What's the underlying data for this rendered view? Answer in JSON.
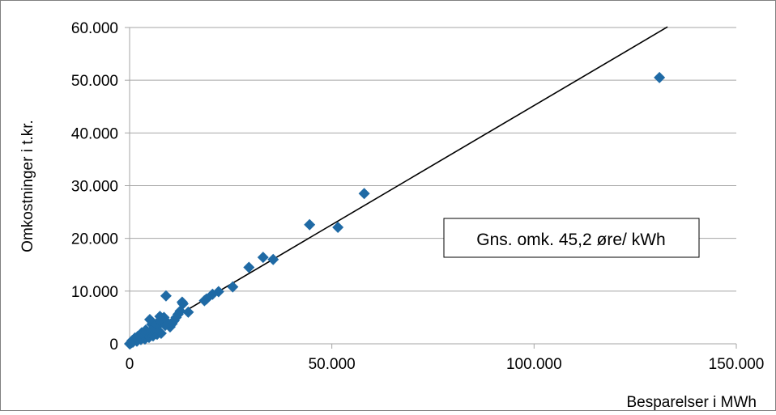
{
  "chart_data": {
    "type": "scatter",
    "title": "",
    "xlabel": "Besparelser i MWh",
    "ylabel": "Omkostninger i t.kr.",
    "xlim": [
      0,
      150000
    ],
    "ylim": [
      0,
      60000
    ],
    "x_ticks": [
      0,
      50000,
      100000,
      150000
    ],
    "x_tick_labels": [
      "0",
      "50.000",
      "100.000",
      "150.000"
    ],
    "y_ticks": [
      0,
      10000,
      20000,
      30000,
      40000,
      50000,
      60000
    ],
    "y_tick_labels": [
      "0",
      "10.000",
      "20.000",
      "30.000",
      "40.000",
      "50.000",
      "60.000"
    ],
    "grid": "horizontal",
    "colors": {
      "points": "#1f6aa5",
      "trendline": "#000000",
      "grid": "#a6a6a6"
    },
    "annotation": "Gns. omk. 45,2 øre/ kWh",
    "trendline": {
      "slope": 0.452,
      "x_range": [
        0,
        133000
      ]
    },
    "series": [
      {
        "points": [
          [
            131000,
            50500
          ],
          [
            58000,
            28500
          ],
          [
            51500,
            22100
          ],
          [
            44500,
            22600
          ],
          [
            35500,
            16000
          ],
          [
            33000,
            16400
          ],
          [
            29500,
            14500
          ],
          [
            25500,
            10800
          ],
          [
            22000,
            9900
          ],
          [
            20500,
            9400
          ],
          [
            19000,
            8500
          ],
          [
            18500,
            8200
          ],
          [
            14500,
            6000
          ],
          [
            13200,
            7600
          ],
          [
            13000,
            7900
          ],
          [
            12500,
            6200
          ],
          [
            12000,
            5600
          ],
          [
            11500,
            5000
          ],
          [
            11000,
            4400
          ],
          [
            10500,
            3800
          ],
          [
            10000,
            3200
          ],
          [
            9500,
            3900
          ],
          [
            9000,
            9100
          ],
          [
            8800,
            3500
          ],
          [
            8500,
            5000
          ],
          [
            8000,
            4600
          ],
          [
            7800,
            2000
          ],
          [
            7500,
            5200
          ],
          [
            7200,
            3600
          ],
          [
            7000,
            4100
          ],
          [
            6800,
            1800
          ],
          [
            6500,
            3000
          ],
          [
            6200,
            2400
          ],
          [
            6000,
            3400
          ],
          [
            5800,
            1500
          ],
          [
            5500,
            3700
          ],
          [
            5300,
            2500
          ],
          [
            5000,
            4600
          ],
          [
            4800,
            1200
          ],
          [
            4500,
            2200
          ],
          [
            4200,
            1700
          ],
          [
            4000,
            2600
          ],
          [
            3800,
            900
          ],
          [
            3500,
            1900
          ],
          [
            3300,
            1300
          ],
          [
            3000,
            2100
          ],
          [
            2800,
            800
          ],
          [
            2500,
            1600
          ],
          [
            2300,
            1000
          ],
          [
            2000,
            1400
          ],
          [
            1800,
            500
          ],
          [
            1500,
            900
          ],
          [
            1300,
            1100
          ],
          [
            1000,
            500
          ],
          [
            800,
            300
          ],
          [
            600,
            600
          ],
          [
            400,
            200
          ],
          [
            200,
            100
          ],
          [
            100,
            0
          ],
          [
            0,
            0
          ]
        ]
      }
    ]
  }
}
